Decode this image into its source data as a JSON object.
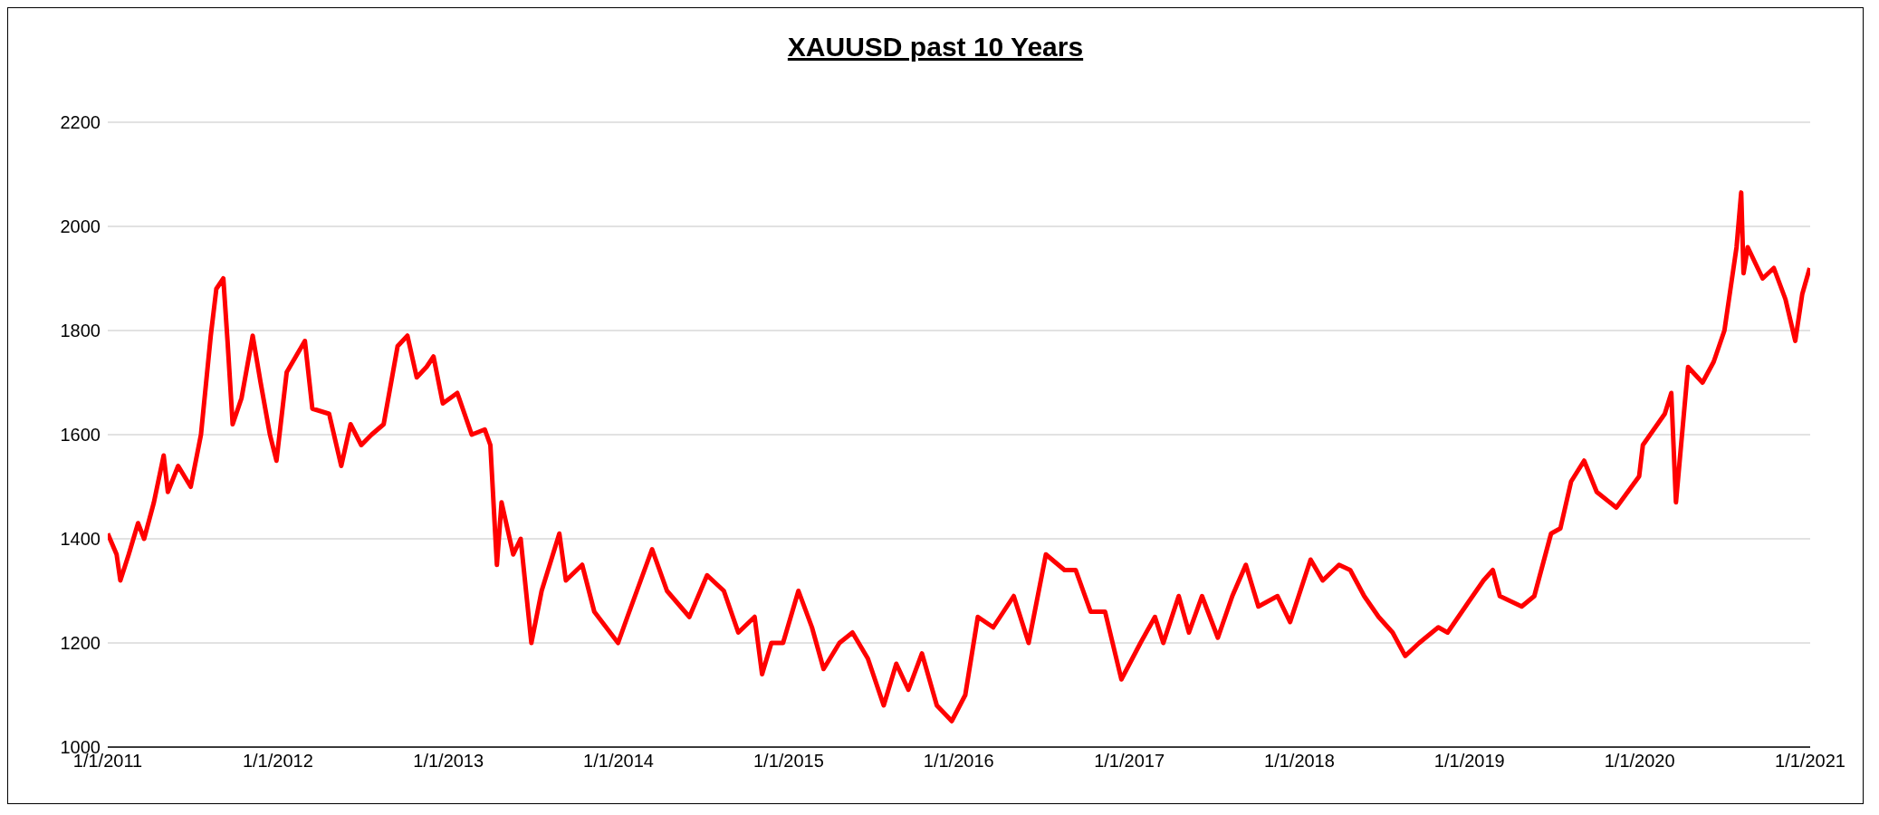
{
  "chart_data": {
    "type": "line",
    "title": "XAUUSD past 10 Years",
    "x": [
      "2011-01-01",
      "2011-01-20",
      "2011-01-28",
      "2011-02-15",
      "2011-03-07",
      "2011-03-20",
      "2011-04-10",
      "2011-05-01",
      "2011-05-10",
      "2011-06-01",
      "2011-06-28",
      "2011-07-20",
      "2011-08-10",
      "2011-08-22",
      "2011-09-06",
      "2011-09-15",
      "2011-09-26",
      "2011-10-15",
      "2011-11-08",
      "2011-11-25",
      "2011-12-15",
      "2011-12-29",
      "2012-01-20",
      "2012-02-28",
      "2012-03-15",
      "2012-04-20",
      "2012-05-16",
      "2012-06-05",
      "2012-06-28",
      "2012-07-20",
      "2012-08-15",
      "2012-09-14",
      "2012-10-05",
      "2012-10-25",
      "2012-11-15",
      "2012-11-30",
      "2012-12-20",
      "2013-01-20",
      "2013-02-20",
      "2013-03-20",
      "2013-04-01",
      "2013-04-15",
      "2013-04-25",
      "2013-05-20",
      "2013-06-05",
      "2013-06-28",
      "2013-07-20",
      "2013-08-27",
      "2013-09-10",
      "2013-10-15",
      "2013-11-10",
      "2013-12-31",
      "2014-01-20",
      "2014-03-14",
      "2014-04-15",
      "2014-06-02",
      "2014-07-10",
      "2014-08-15",
      "2014-09-15",
      "2014-10-20",
      "2014-11-05",
      "2014-11-25",
      "2014-12-20",
      "2015-01-22",
      "2015-02-20",
      "2015-03-17",
      "2015-04-20",
      "2015-05-18",
      "2015-06-20",
      "2015-07-24",
      "2015-08-20",
      "2015-09-15",
      "2015-10-14",
      "2015-11-15",
      "2015-12-17",
      "2016-01-15",
      "2016-02-11",
      "2016-03-15",
      "2016-04-28",
      "2016-05-30",
      "2016-07-06",
      "2016-08-15",
      "2016-09-08",
      "2016-10-10",
      "2016-11-10",
      "2016-12-15",
      "2017-01-25",
      "2017-02-25",
      "2017-03-15",
      "2017-04-17",
      "2017-05-09",
      "2017-06-06",
      "2017-07-10",
      "2017-08-10",
      "2017-09-08",
      "2017-10-05",
      "2017-11-15",
      "2017-12-12",
      "2018-01-25",
      "2018-02-20",
      "2018-03-27",
      "2018-04-20",
      "2018-05-20",
      "2018-06-20",
      "2018-07-20",
      "2018-08-16",
      "2018-09-15",
      "2018-10-26",
      "2018-11-15",
      "2018-12-31",
      "2019-01-31",
      "2019-02-20",
      "2019-03-07",
      "2019-04-23",
      "2019-05-20",
      "2019-06-25",
      "2019-07-15",
      "2019-08-07",
      "2019-09-04",
      "2019-10-01",
      "2019-11-12",
      "2019-12-31",
      "2020-01-08",
      "2020-02-24",
      "2020-03-09",
      "2020-03-19",
      "2020-04-14",
      "2020-05-15",
      "2020-06-08",
      "2020-07-01",
      "2020-07-27",
      "2020-08-06",
      "2020-08-11",
      "2020-08-20",
      "2020-09-21",
      "2020-10-15",
      "2020-11-09",
      "2020-11-30",
      "2020-12-15",
      "2020-12-31"
    ],
    "series": [
      {
        "color": "#ff0000",
        "values": [
          1410,
          1370,
          1320,
          1370,
          1430,
          1400,
          1470,
          1560,
          1490,
          1540,
          1500,
          1600,
          1790,
          1880,
          1900,
          1780,
          1620,
          1670,
          1790,
          1700,
          1600,
          1550,
          1720,
          1780,
          1650,
          1640,
          1540,
          1620,
          1580,
          1600,
          1620,
          1770,
          1790,
          1710,
          1730,
          1750,
          1660,
          1680,
          1600,
          1610,
          1580,
          1350,
          1470,
          1370,
          1400,
          1200,
          1300,
          1410,
          1320,
          1350,
          1260,
          1200,
          1250,
          1380,
          1300,
          1250,
          1330,
          1300,
          1220,
          1250,
          1140,
          1200,
          1200,
          1300,
          1230,
          1150,
          1200,
          1220,
          1170,
          1080,
          1160,
          1110,
          1180,
          1080,
          1050,
          1100,
          1250,
          1230,
          1290,
          1200,
          1370,
          1340,
          1340,
          1260,
          1260,
          1130,
          1200,
          1250,
          1200,
          1290,
          1220,
          1290,
          1210,
          1290,
          1350,
          1270,
          1290,
          1240,
          1360,
          1320,
          1350,
          1340,
          1290,
          1250,
          1220,
          1175,
          1200,
          1230,
          1220,
          1280,
          1320,
          1340,
          1290,
          1270,
          1290,
          1410,
          1420,
          1510,
          1550,
          1490,
          1460,
          1520,
          1580,
          1640,
          1680,
          1470,
          1730,
          1700,
          1740,
          1800,
          1960,
          2065,
          1910,
          1960,
          1900,
          1920,
          1860,
          1780,
          1870,
          1920
        ]
      }
    ],
    "xlim": [
      "2011-01-01",
      "2021-01-01"
    ],
    "xticks": [
      {
        "value": "2011-01-01",
        "label": "1/1/2011"
      },
      {
        "value": "2012-01-01",
        "label": "1/1/2012"
      },
      {
        "value": "2013-01-01",
        "label": "1/1/2013"
      },
      {
        "value": "2014-01-01",
        "label": "1/1/2014"
      },
      {
        "value": "2015-01-01",
        "label": "1/1/2015"
      },
      {
        "value": "2016-01-01",
        "label": "1/1/2016"
      },
      {
        "value": "2017-01-01",
        "label": "1/1/2017"
      },
      {
        "value": "2018-01-01",
        "label": "1/1/2018"
      },
      {
        "value": "2019-01-01",
        "label": "1/1/2019"
      },
      {
        "value": "2020-01-01",
        "label": "1/1/2020"
      },
      {
        "value": "2021-01-01",
        "label": "1/1/2021"
      }
    ],
    "ylim": [
      1000,
      2200
    ],
    "yticks": [
      1000,
      1200,
      1400,
      1600,
      1800,
      2000,
      2200
    ],
    "grid": "y",
    "legend": false,
    "marker": "none",
    "line_style": "solid"
  }
}
